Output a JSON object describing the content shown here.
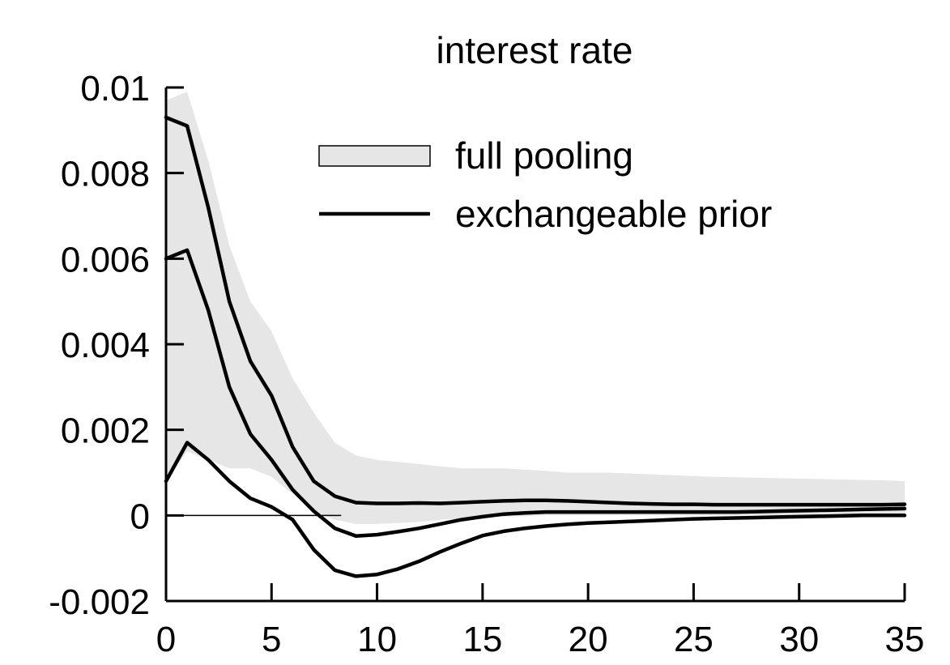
{
  "chart_data": {
    "type": "line",
    "title": "interest rate",
    "xlabel": "",
    "ylabel": "",
    "xlim": [
      0,
      35
    ],
    "ylim": [
      -0.002,
      0.01
    ],
    "x_ticks": [
      0,
      5,
      10,
      15,
      20,
      25,
      30,
      35
    ],
    "y_ticks": [
      -0.002,
      0,
      0.002,
      0.004,
      0.006,
      0.008,
      0.01
    ],
    "x_tick_labels": [
      "0",
      "5",
      "10",
      "15",
      "20",
      "25",
      "30",
      "35"
    ],
    "y_tick_labels": [
      "-0.002",
      "0",
      "0.002",
      "0.004",
      "0.006",
      "0.008",
      "0.01"
    ],
    "grid": false,
    "legend_position": "top-right",
    "colors": {
      "band_fill": "#e6e6e6",
      "band_edge": "#000000",
      "line": "#000000",
      "axis": "#000000"
    },
    "band": {
      "name": "full pooling",
      "x": [
        0,
        1,
        2,
        3,
        4,
        5,
        6,
        7,
        8,
        9,
        10,
        11,
        12,
        13,
        14,
        15,
        16,
        17,
        18,
        19,
        20,
        21,
        22,
        23,
        24,
        25,
        26,
        27,
        28,
        29,
        30,
        31,
        32,
        33,
        34,
        35
      ],
      "upper": [
        0.0097,
        0.0099,
        0.0083,
        0.0063,
        0.005,
        0.0043,
        0.0032,
        0.0024,
        0.0017,
        0.0014,
        0.0013,
        0.00125,
        0.0012,
        0.00115,
        0.0011,
        0.0011,
        0.0011,
        0.00107,
        0.00104,
        0.001,
        0.001,
        0.001,
        0.00098,
        0.00096,
        0.00094,
        0.00092,
        0.0009,
        0.00089,
        0.00088,
        0.00087,
        0.00086,
        0.00085,
        0.00084,
        0.00083,
        0.00082,
        0.0008
      ],
      "lower": [
        0.0008,
        0.0015,
        0.0013,
        0.0011,
        0.0011,
        0.0009,
        0.0005,
        0.0001,
        -0.0001,
        -0.0002,
        -0.0002,
        -0.00018,
        -0.00015,
        -0.0001,
        -8e-05,
        -5e-05,
        -3e-05,
        -2e-05,
        0.0,
        0.0,
        0.0,
        0.0,
        0.0,
        0.0,
        0.0,
        0.0,
        0.0,
        0.0,
        0.0,
        0.0,
        0.0,
        0.0,
        0.0,
        0.0,
        0.0,
        0.0
      ]
    },
    "series": [
      {
        "name": "exchangeable prior",
        "role": "upper",
        "x": [
          0,
          1,
          2,
          3,
          4,
          5,
          6,
          7,
          8,
          9,
          10,
          11,
          12,
          13,
          14,
          15,
          16,
          17,
          18,
          19,
          20,
          21,
          22,
          23,
          24,
          25,
          26,
          27,
          28,
          29,
          30,
          31,
          32,
          33,
          34,
          35
        ],
        "values": [
          0.0093,
          0.0091,
          0.0072,
          0.005,
          0.0036,
          0.0028,
          0.0016,
          0.0008,
          0.00045,
          0.0003,
          0.00028,
          0.00028,
          0.00029,
          0.00028,
          0.0003,
          0.00032,
          0.00034,
          0.00035,
          0.00035,
          0.00034,
          0.00032,
          0.0003,
          0.00028,
          0.00027,
          0.00026,
          0.00026,
          0.00025,
          0.00025,
          0.00025,
          0.00025,
          0.00025,
          0.00025,
          0.00025,
          0.00025,
          0.00025,
          0.00026
        ]
      },
      {
        "name": "exchangeable prior",
        "role": "median",
        "x": [
          0,
          1,
          2,
          3,
          4,
          5,
          6,
          7,
          8,
          9,
          10,
          11,
          12,
          13,
          14,
          15,
          16,
          17,
          18,
          19,
          20,
          21,
          22,
          23,
          24,
          25,
          26,
          27,
          28,
          29,
          30,
          31,
          32,
          33,
          34,
          35
        ],
        "values": [
          0.006,
          0.0062,
          0.0048,
          0.003,
          0.0019,
          0.0013,
          0.0006,
          0.0001,
          -0.0003,
          -0.00048,
          -0.00045,
          -0.00038,
          -0.0003,
          -0.0002,
          -0.0001,
          -3e-05,
          3e-05,
          6e-05,
          8e-05,
          8e-05,
          8e-05,
          8e-05,
          8e-05,
          8e-05,
          8e-05,
          8e-05,
          8e-05,
          8e-05,
          9e-05,
          0.0001,
          0.00011,
          0.00012,
          0.00013,
          0.00014,
          0.00015,
          0.00016
        ]
      },
      {
        "name": "exchangeable prior",
        "role": "lower",
        "x": [
          0,
          1,
          2,
          3,
          4,
          5,
          6,
          7,
          8,
          9,
          10,
          11,
          12,
          13,
          14,
          15,
          16,
          17,
          18,
          19,
          20,
          21,
          22,
          23,
          24,
          25,
          26,
          27,
          28,
          29,
          30,
          31,
          32,
          33,
          34,
          35
        ],
        "values": [
          0.0008,
          0.0017,
          0.0013,
          0.0008,
          0.0004,
          0.0002,
          -0.0001,
          -0.0008,
          -0.00128,
          -0.00142,
          -0.00138,
          -0.00125,
          -0.00107,
          -0.00085,
          -0.00065,
          -0.00047,
          -0.00037,
          -0.0003,
          -0.00025,
          -0.00021,
          -0.00018,
          -0.00016,
          -0.00014,
          -0.00012,
          -0.0001,
          -8e-05,
          -7e-05,
          -6e-05,
          -5e-05,
          -4e-05,
          -3e-05,
          -2e-05,
          -1e-05,
          0.0,
          0.0,
          0.0
        ]
      }
    ],
    "reference_line": {
      "y": 0,
      "x_from": 0,
      "x_to": 8.3
    },
    "legend": [
      {
        "label": "full pooling",
        "kind": "band"
      },
      {
        "label": "exchangeable prior",
        "kind": "line"
      }
    ]
  }
}
